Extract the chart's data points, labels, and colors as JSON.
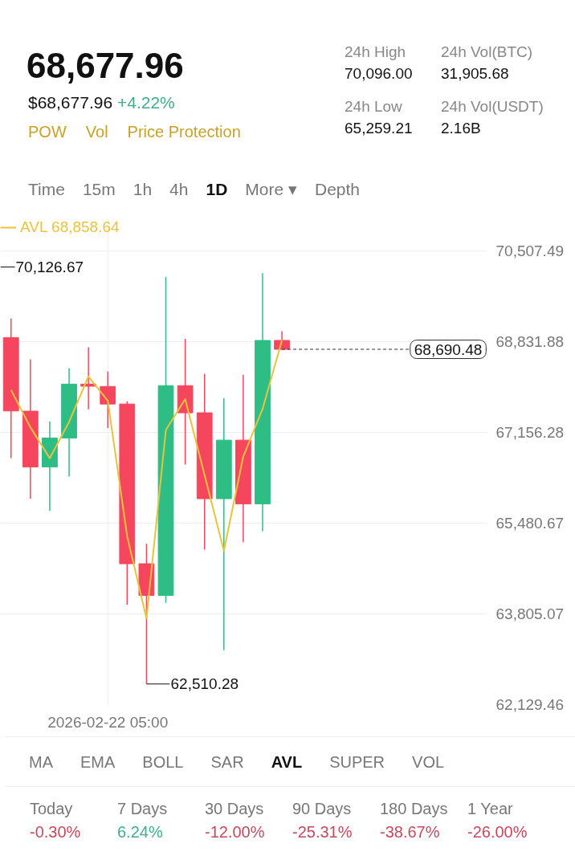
{
  "chart_data": {
    "type": "candlestick",
    "title": "68,677.96",
    "subtitle": "$68,677.96 +4.22%",
    "categories": [
      null,
      null,
      null,
      null,
      null,
      "2026-02-22 05:00",
      null,
      null,
      null,
      null,
      null,
      null,
      null,
      null,
      null
    ],
    "ohlc": [
      [
        68907,
        69260,
        66683,
        67552
      ],
      [
        67548,
        68505,
        65932,
        66517
      ],
      [
        66517,
        67356,
        65707,
        67051
      ],
      [
        67051,
        68343,
        66340,
        68048
      ],
      [
        68048,
        68726,
        67582,
        68009
      ],
      [
        68004,
        68280,
        67238,
        67680
      ],
      [
        67680,
        67729,
        63974,
        64731
      ],
      [
        64731,
        65099,
        62510.28,
        64146
      ],
      [
        64146,
        70030,
        64009,
        68019
      ],
      [
        68019,
        68883,
        66561,
        67518
      ],
      [
        67518,
        68240,
        64990,
        65932
      ],
      [
        65932,
        67788,
        63135,
        67013
      ],
      [
        67013,
        68221,
        65128,
        65835
      ],
      [
        65835,
        70096,
        65334,
        68854
      ],
      [
        68854,
        69024,
        68681,
        68690.48
      ]
    ],
    "colors": [
      "#f6465d",
      "#f6465d",
      "#2ebd85",
      "#2ebd85",
      "#f6465d",
      "#f6465d",
      "#f6465d",
      "#f6465d",
      "#2ebd85",
      "#f6465d",
      "#f6465d",
      "#2ebd85",
      "#f6465d",
      "#2ebd85",
      "#f6465d"
    ],
    "series": [
      {
        "name": "AVL 68,858.64",
        "type": "line",
        "color": "#e9c33b",
        "values": [
          67940,
          67250,
          66680,
          67350,
          68190,
          67740,
          65240,
          63720,
          67200,
          67770,
          66370,
          64970,
          66710,
          67590,
          68858.64
        ]
      }
    ],
    "ylim": [
      62129.46,
      71100
    ],
    "yticks": [
      {
        "value": 70507.49,
        "label": "70,507.49"
      },
      {
        "value": 68831.88,
        "label": "68,831.88"
      },
      {
        "value": 67156.28,
        "label": "67,156.28"
      },
      {
        "value": 65480.67,
        "label": "65,480.67"
      },
      {
        "value": 63805.07,
        "label": "63,805.07"
      },
      {
        "value": 62129.46,
        "label": "62,129.46"
      }
    ],
    "grid": true,
    "legend": "top left",
    "ref_lines": [
      {
        "axis": "y",
        "value": 68690.48,
        "label": "68,690.48",
        "color": "#333333",
        "line_style": "dashed"
      }
    ],
    "annotations": [
      "POW",
      "Vol",
      "Price Protection",
      "24h High",
      "70,096.00",
      "24h Vol(BTC)",
      "31,905.68",
      "24h Low",
      "65,259.21",
      "24h Vol(USDT)",
      "2.16B",
      "Time",
      "15m",
      "1h",
      "4h",
      "1D",
      "More ▾",
      "Depth",
      "MA",
      "EMA",
      "BOLL",
      "SAR",
      "AVL",
      "SUPER",
      "VOL",
      "Today",
      "-0.30%",
      "7 Days",
      "6.24%",
      "30 Days",
      "-12.00%",
      "90 Days",
      "-25.31%",
      "180 Days",
      "-38.67%",
      "1 Year",
      "-26.00%",
      "70,126.67",
      "62,510.28"
    ]
  }
}
